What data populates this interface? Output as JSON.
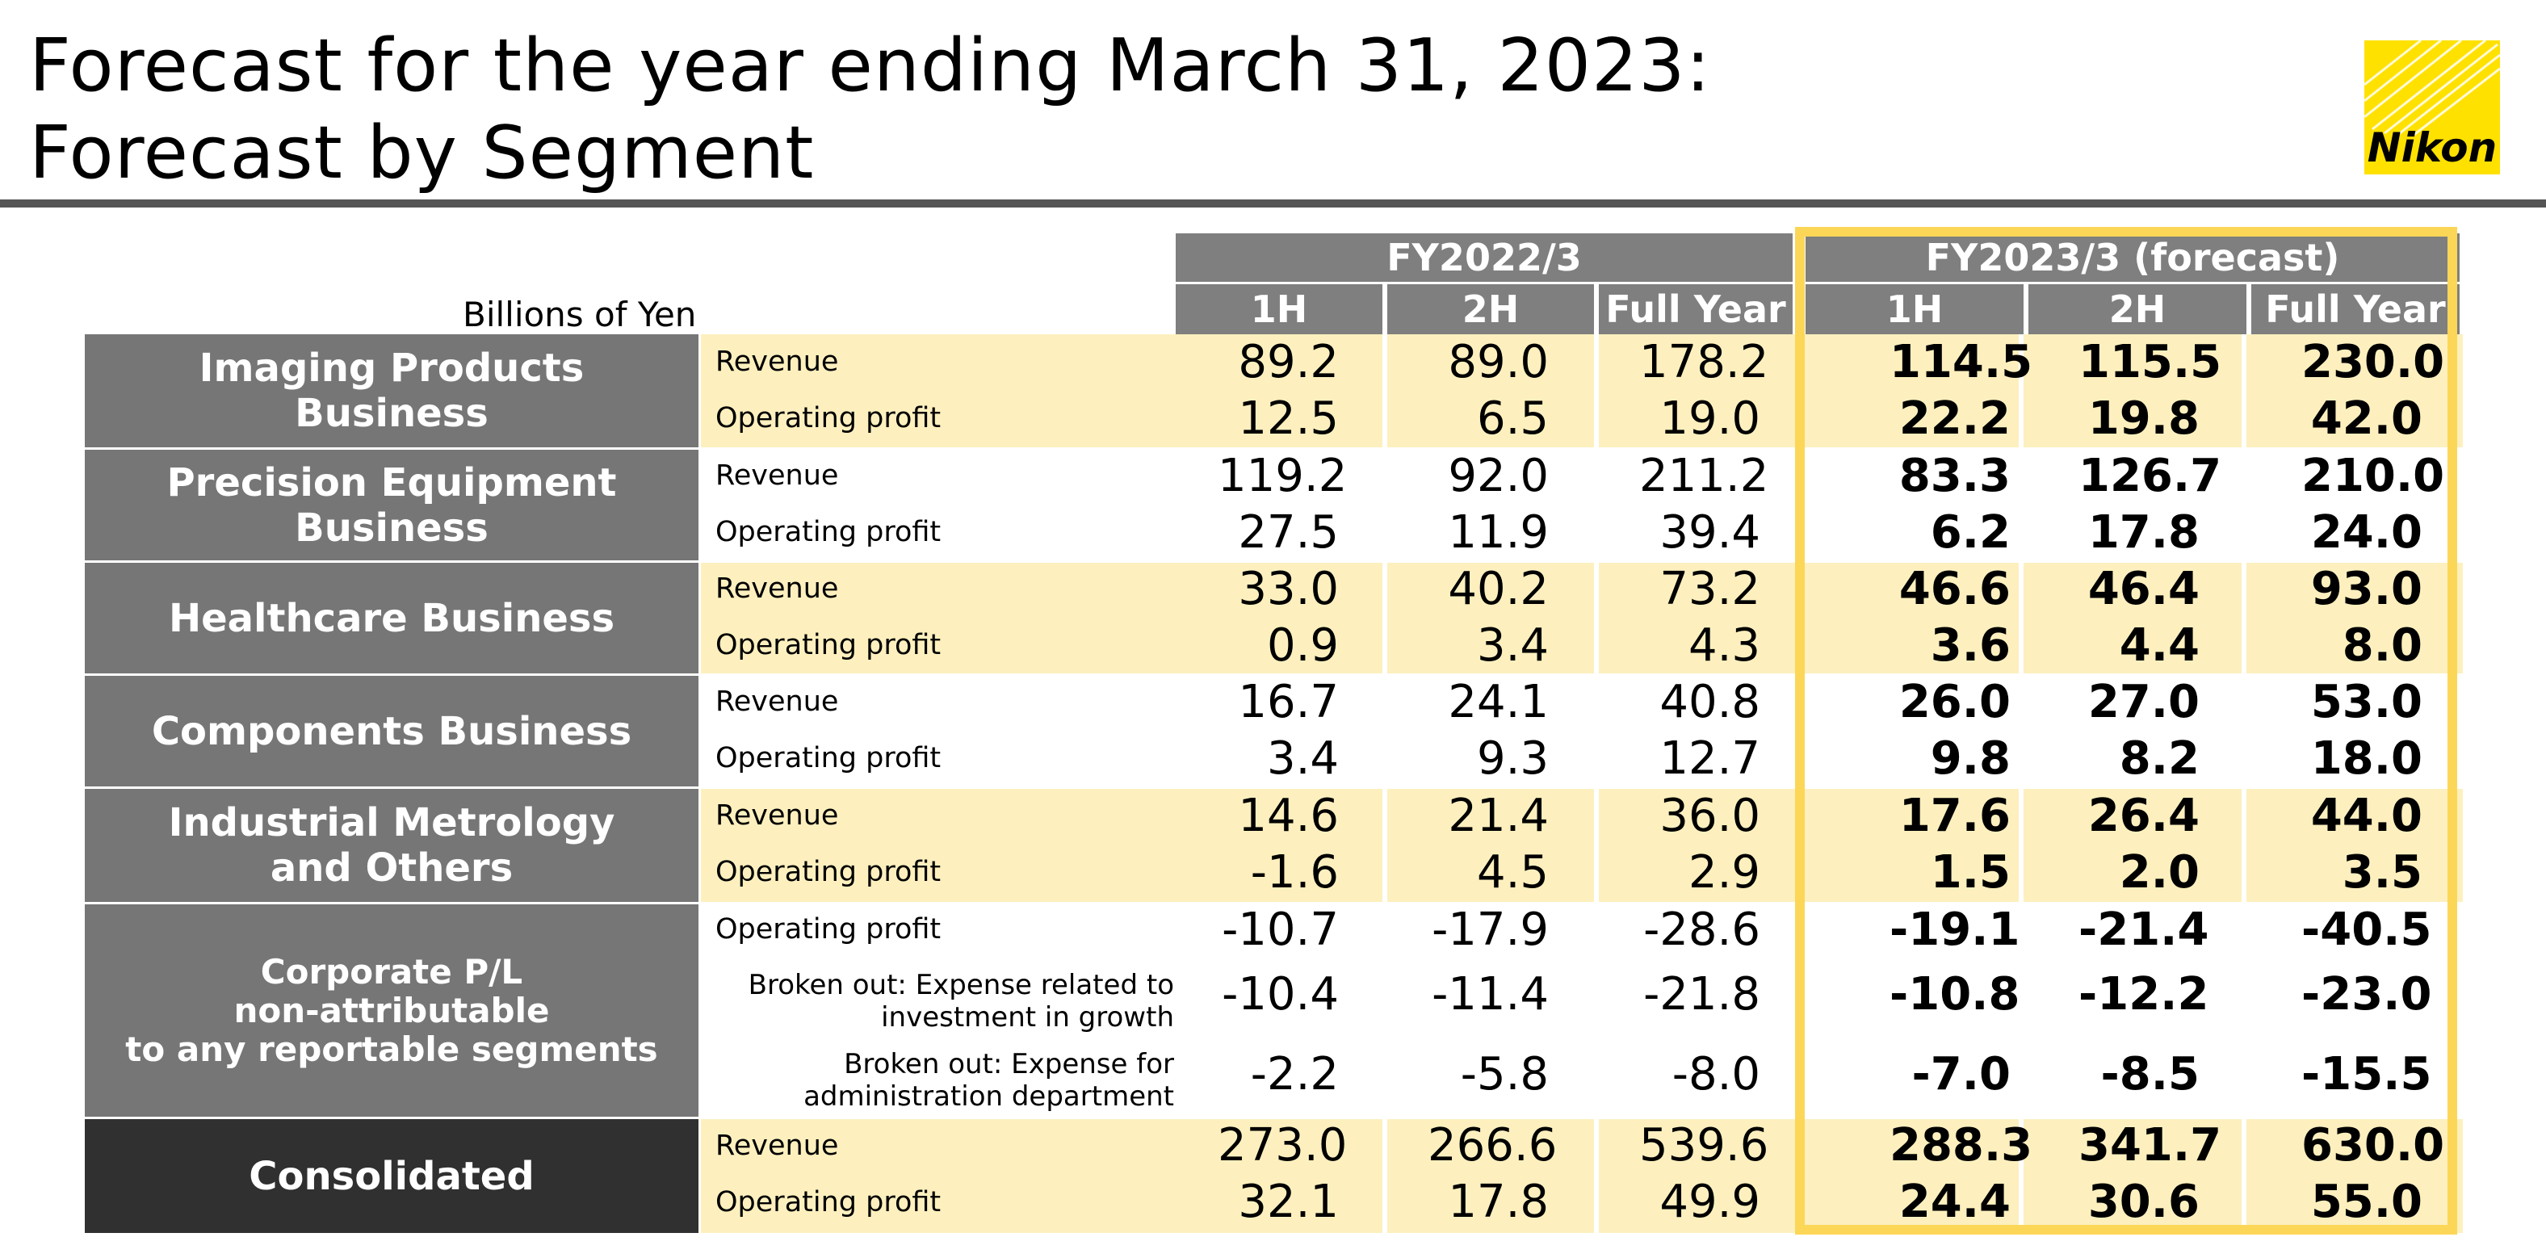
{
  "title": {
    "line1": "Forecast for the year ending March 31, 2023:",
    "line2": "Forecast by Segment"
  },
  "logo": {
    "text": "Nikon",
    "color": "#ffe100"
  },
  "unit_label": "Billions of Yen",
  "headers": {
    "fy2022": "FY2022/3",
    "fy2023": "FY2023/3 (forecast)",
    "columns": [
      "1H",
      "2H",
      "Full Year",
      "1H",
      "2H",
      "Full Year"
    ]
  },
  "colors": {
    "segment_bg": "#767676",
    "consolidated_bg": "#303030",
    "band_yellow": "#fdf0be",
    "forecast_frame": "#fcd657"
  },
  "segments": [
    {
      "name": "Imaging Products Business",
      "name_lines": [
        "Imaging Products",
        "Business"
      ]
    },
    {
      "name": "Precision Equipment Business",
      "name_lines": [
        "Precision Equipment",
        "Business"
      ]
    },
    {
      "name": "Healthcare Business",
      "name_lines": [
        "Healthcare Business"
      ]
    },
    {
      "name": "Components Business",
      "name_lines": [
        "Components Business"
      ]
    },
    {
      "name": "Industrial Metrology and Others",
      "name_lines": [
        "Industrial Metrology",
        "and Others"
      ]
    },
    {
      "name": "Corporate P/L non-attributable to any reportable segments",
      "name_lines": [
        "Corporate P/L",
        "non-attributable",
        "to any reportable segments"
      ]
    },
    {
      "name": "Consolidated",
      "name_lines": [
        "Consolidated"
      ]
    }
  ],
  "rows": [
    {
      "label": "Revenue",
      "values": [
        "89.2",
        "89.0",
        "178.2",
        "114.5",
        "115.5",
        "230.0"
      ]
    },
    {
      "label": "Operating profit",
      "values": [
        "12.5",
        "6.5",
        "19.0",
        "22.2",
        "19.8",
        "42.0"
      ]
    },
    {
      "label": "Revenue",
      "values": [
        "119.2",
        "92.0",
        "211.2",
        "83.3",
        "126.7",
        "210.0"
      ]
    },
    {
      "label": "Operating profit",
      "values": [
        "27.5",
        "11.9",
        "39.4",
        "6.2",
        "17.8",
        "24.0"
      ]
    },
    {
      "label": "Revenue",
      "values": [
        "33.0",
        "40.2",
        "73.2",
        "46.6",
        "46.4",
        "93.0"
      ]
    },
    {
      "label": "Operating profit",
      "values": [
        "0.9",
        "3.4",
        "4.3",
        "3.6",
        "4.4",
        "8.0"
      ]
    },
    {
      "label": "Revenue",
      "values": [
        "16.7",
        "24.1",
        "40.8",
        "26.0",
        "27.0",
        "53.0"
      ]
    },
    {
      "label": "Operating profit",
      "values": [
        "3.4",
        "9.3",
        "12.7",
        "9.8",
        "8.2",
        "18.0"
      ]
    },
    {
      "label": "Revenue",
      "values": [
        "14.6",
        "21.4",
        "36.0",
        "17.6",
        "26.4",
        "44.0"
      ]
    },
    {
      "label": "Operating profit",
      "values": [
        "-1.6",
        "4.5",
        "2.9",
        "1.5",
        "2.0",
        "3.5"
      ]
    },
    {
      "label": "Operating profit",
      "values": [
        "-10.7",
        "-17.9",
        "-28.6",
        "-19.1",
        "-21.4",
        "-40.5"
      ]
    },
    {
      "label": "Broken out: Expense related to investment in growth",
      "label_lines": [
        "Broken out: Expense related to",
        "investment in growth"
      ],
      "values": [
        "-10.4",
        "-11.4",
        "-21.8",
        "-10.8",
        "-12.2",
        "-23.0"
      ]
    },
    {
      "label": "Broken out: Expense for administration department",
      "label_lines": [
        "Broken out: Expense for",
        "administration department"
      ],
      "values": [
        "-2.2",
        "-5.8",
        "-8.0",
        "-7.0",
        "-8.5",
        "-15.5"
      ]
    },
    {
      "label": "Revenue",
      "values": [
        "273.0",
        "266.6",
        "539.6",
        "288.3",
        "341.7",
        "630.0"
      ]
    },
    {
      "label": "Operating profit",
      "values": [
        "32.1",
        "17.8",
        "49.9",
        "24.4",
        "30.6",
        "55.0"
      ]
    }
  ]
}
